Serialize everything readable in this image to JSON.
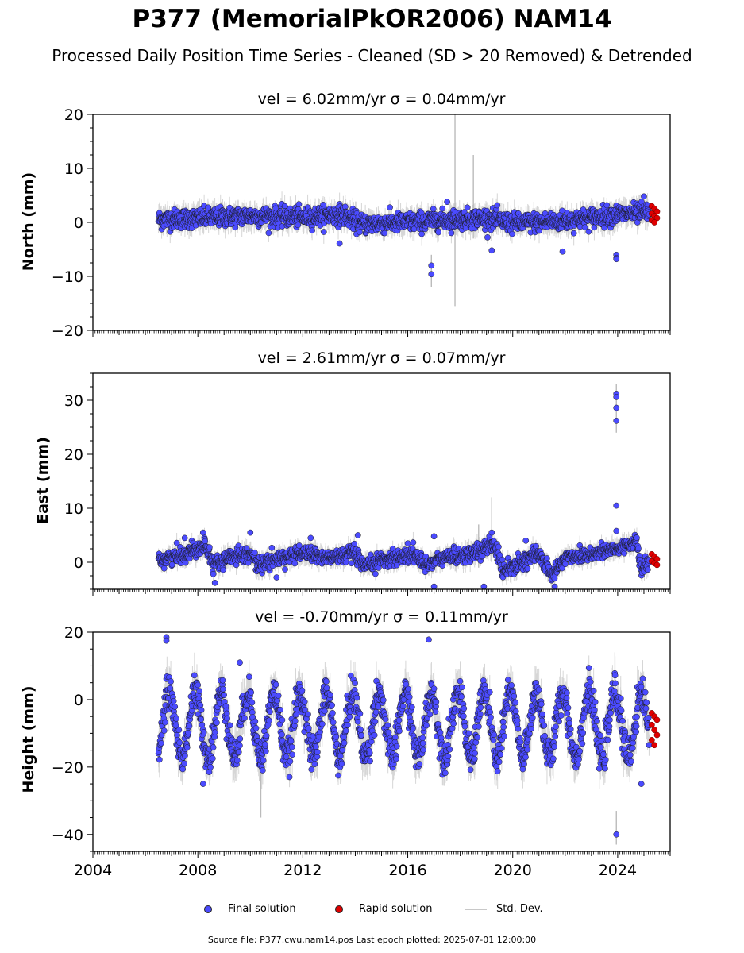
{
  "title": "P377 (MemorialPkOR2006) NAM14",
  "subtitle": "Processed Daily Position Time Series - Cleaned (SD > 20 Removed) & Detrended",
  "source": "Source file: P377.cwu.nam14.pos  Last epoch plotted: 2025-07-01 12:00:00",
  "legend": {
    "final": "Final solution",
    "rapid": "Rapid solution",
    "std": "Std. Dev."
  },
  "colors": {
    "final": "#4b4bff",
    "rapid": "#e00000",
    "std": "#bbbbbb",
    "edge": "#1a1a1a"
  },
  "chart_data": [
    {
      "type": "scatter",
      "panel": "north",
      "title": "vel = 6.02mm/yr   σ = 0.04mm/yr",
      "ylabel": "North (mm)",
      "ylim": [
        -20,
        20
      ],
      "yticks": [
        -20,
        -10,
        0,
        10,
        20
      ],
      "xlim": [
        2004,
        2026
      ],
      "data_start": 2006.5,
      "final_end": 2025.2,
      "series": [
        {
          "name": "Final solution",
          "trend_points": [
            [
              2006.5,
              0.5
            ],
            [
              2008,
              0.8
            ],
            [
              2010,
              1.2
            ],
            [
              2012,
              0.9
            ],
            [
              2013.5,
              1.5
            ],
            [
              2014.2,
              -0.3
            ],
            [
              2016,
              0.0
            ],
            [
              2017.5,
              0.5
            ],
            [
              2019,
              0.8
            ],
            [
              2020,
              -0.2
            ],
            [
              2022,
              0.3
            ],
            [
              2024,
              1.5
            ],
            [
              2025.2,
              1.8
            ]
          ],
          "spread": 1.6,
          "outliers": [
            [
              2016.9,
              -8
            ],
            [
              2016.9,
              -9.6
            ],
            [
              2017.5,
              3.8
            ],
            [
              2019.2,
              -5.2
            ],
            [
              2021.9,
              -5.4
            ],
            [
              2023.95,
              -6
            ],
            [
              2023.95,
              -6.6
            ],
            [
              2023.95,
              -6.8
            ],
            [
              2013.4,
              -3.9
            ],
            [
              2025,
              4.8
            ]
          ]
        },
        {
          "name": "Rapid solution",
          "x_range": [
            2025.3,
            2025.5
          ],
          "y_values": [
            3,
            2.5,
            2,
            1.6,
            1.2,
            0.8,
            0.4,
            0
          ]
        }
      ],
      "std_spikes": [
        [
          2017.8,
          -15.5,
          20
        ],
        [
          2018.5,
          -3,
          12.5
        ],
        [
          2016.9,
          -12,
          -6
        ]
      ]
    },
    {
      "type": "scatter",
      "panel": "east",
      "title": "vel = 2.61mm/yr   σ = 0.07mm/yr",
      "ylabel": "East (mm)",
      "ylim": [
        -5,
        35
      ],
      "yticks": [
        0,
        10,
        20,
        30
      ],
      "xlim": [
        2004,
        2026
      ],
      "data_start": 2006.5,
      "final_end": 2025.2,
      "series": [
        {
          "name": "Final solution",
          "trend_points": [
            [
              2006.5,
              0.5
            ],
            [
              2007.5,
              1.5
            ],
            [
              2008.3,
              3.5
            ],
            [
              2008.6,
              -0.5
            ],
            [
              2009.5,
              1.5
            ],
            [
              2010,
              1.5
            ],
            [
              2010.3,
              -0.5
            ],
            [
              2011,
              0.5
            ],
            [
              2012,
              1.8
            ],
            [
              2013,
              0.8
            ],
            [
              2014,
              1.5
            ],
            [
              2014.3,
              -1
            ],
            [
              2015,
              0.5
            ],
            [
              2016.3,
              1.5
            ],
            [
              2016.6,
              -0.5
            ],
            [
              2017.5,
              1.0
            ],
            [
              2018.5,
              1.5
            ],
            [
              2019.3,
              3.5
            ],
            [
              2019.6,
              -1.5
            ],
            [
              2020.5,
              0.5
            ],
            [
              2021,
              1.5
            ],
            [
              2021.5,
              -2.5
            ],
            [
              2022,
              1.0
            ],
            [
              2023,
              1.5
            ],
            [
              2024,
              2.5
            ],
            [
              2024.7,
              4.0
            ],
            [
              2024.9,
              -1.5
            ],
            [
              2025.2,
              0.2
            ]
          ],
          "spread": 1.3,
          "outliers": [
            [
              2007.5,
              4.5
            ],
            [
              2008.2,
              5.5
            ],
            [
              2008.65,
              -3.8
            ],
            [
              2010.0,
              5.5
            ],
            [
              2011.0,
              -2.8
            ],
            [
              2012.3,
              4.5
            ],
            [
              2014.1,
              5.0
            ],
            [
              2016.0,
              3.5
            ],
            [
              2017.0,
              4.8
            ],
            [
              2017.0,
              -4.5
            ],
            [
              2018.9,
              -4.5
            ],
            [
              2019.2,
              5.5
            ],
            [
              2020.5,
              4.0
            ],
            [
              2021.6,
              -4.5
            ],
            [
              2023.95,
              31.2
            ],
            [
              2023.95,
              30.6
            ],
            [
              2023.95,
              28.6
            ],
            [
              2023.95,
              26.2
            ],
            [
              2023.95,
              10.5
            ],
            [
              2023.95,
              5.8
            ]
          ]
        },
        {
          "name": "Rapid solution",
          "x_range": [
            2025.3,
            2025.5
          ],
          "y_values": [
            1.5,
            1.0,
            0.6,
            0.2,
            -0.2,
            -0.5
          ]
        }
      ],
      "std_spikes": [
        [
          2023.95,
          24,
          33
        ],
        [
          2019.2,
          0,
          12
        ],
        [
          2018.7,
          -1,
          7
        ]
      ]
    },
    {
      "type": "scatter",
      "panel": "height",
      "title": "vel = -0.70mm/yr   σ = 0.11mm/yr",
      "ylabel": "Height (mm)",
      "ylim": [
        -45,
        20
      ],
      "yticks": [
        -40,
        -20,
        0,
        20
      ],
      "xlim": [
        2004,
        2026
      ],
      "xticks": [
        2004,
        2008,
        2012,
        2016,
        2020,
        2024
      ],
      "data_start": 2006.5,
      "final_end": 2025.2,
      "series": [
        {
          "name": "Final solution",
          "mean": -7.5,
          "amplitude": 9.5,
          "period_years": 1.0,
          "spread": 4.5,
          "outliers": [
            [
              2006.8,
              18.5
            ],
            [
              2006.8,
              17.5
            ],
            [
              2016.8,
              17.8
            ],
            [
              2009.6,
              11
            ],
            [
              2023.95,
              -40
            ],
            [
              2008.2,
              -25
            ],
            [
              2024.9,
              -25
            ]
          ]
        },
        {
          "name": "Rapid solution",
          "x_range": [
            2025.3,
            2025.5
          ],
          "y_values": [
            -4,
            -5,
            -6,
            -7.5,
            -9,
            -10.5,
            -12,
            -13.5
          ]
        }
      ],
      "std_spikes": [
        [
          2023.95,
          -43,
          -33
        ],
        [
          2010.4,
          -35,
          -18
        ]
      ]
    }
  ]
}
